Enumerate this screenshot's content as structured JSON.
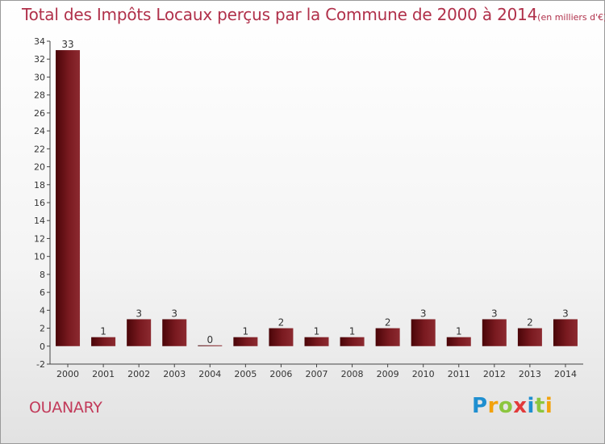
{
  "chart_data": {
    "type": "bar",
    "title": "Total des Impôts Locaux perçus par la Commune de 2000 à 2014",
    "unit_note": "(en milliers d'€)",
    "categories": [
      "2000",
      "2001",
      "2002",
      "2003",
      "2004",
      "2005",
      "2006",
      "2007",
      "2008",
      "2009",
      "2010",
      "2011",
      "2012",
      "2013",
      "2014"
    ],
    "values": [
      33,
      1,
      3,
      3,
      0,
      1,
      2,
      1,
      1,
      2,
      3,
      1,
      3,
      2,
      3
    ],
    "ylim": [
      -2,
      34
    ],
    "yticks": [
      -2,
      0,
      2,
      4,
      6,
      8,
      10,
      12,
      14,
      16,
      18,
      20,
      22,
      24,
      26,
      28,
      30,
      32,
      34
    ],
    "xlabel": "",
    "ylabel": "",
    "grid": false,
    "bar_color": "#6b0f14"
  },
  "commune": "OUANARY",
  "logo": "Proxiti"
}
